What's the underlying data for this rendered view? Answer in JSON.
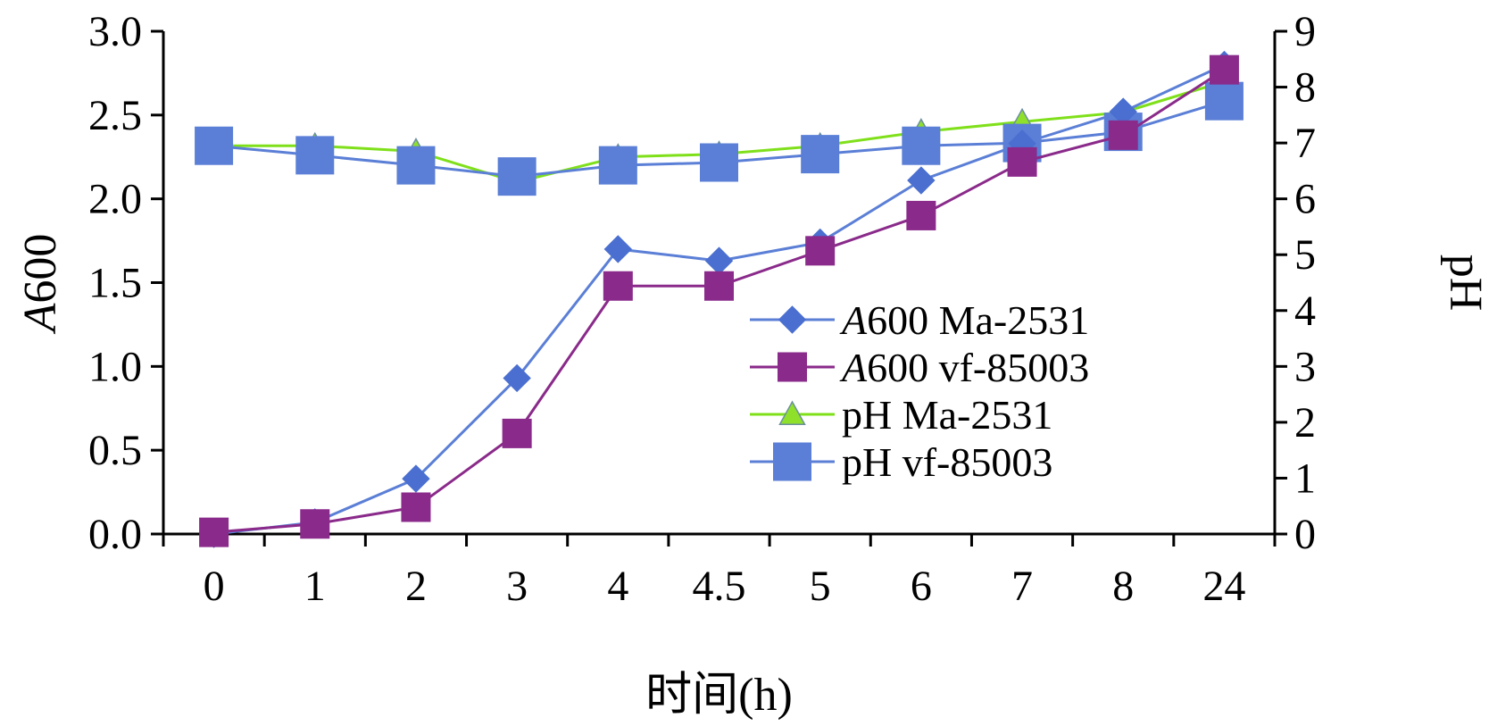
{
  "chart_data": {
    "type": "line",
    "categories": [
      "0",
      "1",
      "2",
      "3",
      "4",
      "4.5",
      "5",
      "6",
      "7",
      "8",
      "24"
    ],
    "xlabel": "时间(h)",
    "ylabel_left_italic": "A",
    "ylabel_left_rest": "600",
    "ylabel_right": "pH",
    "ylim_left": [
      0,
      3.0
    ],
    "yticks_left": [
      "0.0",
      "0.5",
      "1.0",
      "1.5",
      "2.0",
      "2.5",
      "3.0"
    ],
    "ylim_right": [
      0,
      9
    ],
    "yticks_right": [
      "0",
      "1",
      "2",
      "3",
      "4",
      "5",
      "6",
      "7",
      "8",
      "9"
    ],
    "grid": false,
    "legend_position": "center-right",
    "series": [
      {
        "name_italic": "A",
        "name_rest": "600 Ma-2531",
        "axis": "left",
        "marker": "diamond",
        "line_color": "#5b7fd6",
        "marker_color": "#4a6fd0",
        "values": [
          0.0,
          0.07,
          0.33,
          0.93,
          1.7,
          1.63,
          1.74,
          2.11,
          2.33,
          2.52,
          2.8
        ]
      },
      {
        "name_italic": "A",
        "name_rest": "600 vf-85003",
        "axis": "left",
        "marker": "square",
        "line_color": "#8a2a8a",
        "marker_color": "#8a2a8a",
        "values": [
          0.01,
          0.06,
          0.16,
          0.6,
          1.48,
          1.48,
          1.69,
          1.9,
          2.22,
          2.38,
          2.77
        ]
      },
      {
        "name_italic": "",
        "name_rest": "pH Ma-2531",
        "axis": "right",
        "marker": "triangle",
        "line_color": "#7fe01a",
        "marker_color": "#8fe02a",
        "values": [
          6.95,
          6.95,
          6.85,
          6.3,
          6.75,
          6.8,
          6.95,
          7.2,
          7.38,
          7.55,
          8.1
        ]
      },
      {
        "name_italic": "",
        "name_rest": "pH vf-85003",
        "axis": "right",
        "marker": "square",
        "line_color": "#5b7fd6",
        "marker_color": "#5b7fd6",
        "values": [
          6.95,
          6.78,
          6.6,
          6.4,
          6.6,
          6.65,
          6.8,
          6.95,
          7.0,
          7.2,
          7.75
        ]
      }
    ]
  }
}
